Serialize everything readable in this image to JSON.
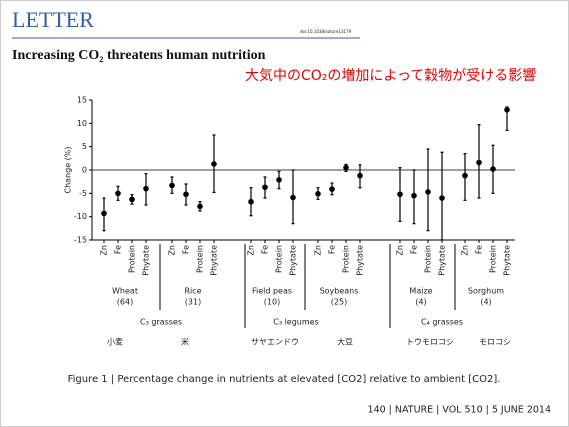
{
  "header": {
    "journal": "LETTER",
    "doi": "doi:10.1038/nature13179",
    "title": "Increasing CO₂ threatens human nutrition"
  },
  "annotation": "大気中のCO₂の増加によって穀物が受ける影響",
  "chart_data": {
    "type": "errorbar",
    "y_label": "Change (%)",
    "ylim": [
      -15,
      15
    ],
    "yticks": [
      -15,
      -10,
      -5,
      0,
      5,
      10,
      15
    ],
    "color": "#000000",
    "supergroups": [
      {
        "label": "C₃ grasses",
        "crops": [
          {
            "name": "Wheat",
            "n": "(64)",
            "local_name": "小麦",
            "categories": [
              "Zn",
              "Fe",
              "Protein",
              "Phytate"
            ],
            "values": [
              -9.3,
              -5,
              -6.3,
              -4
            ],
            "low": [
              -13,
              -6.5,
              -7.3,
              -7.5
            ],
            "high": [
              -6,
              -3.5,
              -5.3,
              -0.8
            ]
          },
          {
            "name": "Rice",
            "n": "(31)",
            "local_name": "米",
            "categories": [
              "Zn",
              "Fe",
              "Protein",
              "Phytate"
            ],
            "values": [
              -3.3,
              -5.2,
              -7.8,
              1.3
            ],
            "low": [
              -5,
              -7.5,
              -8.8,
              -4.8
            ],
            "high": [
              -1.5,
              -3,
              -6.8,
              7.5
            ]
          }
        ]
      },
      {
        "label": "C₃ legumes",
        "crops": [
          {
            "name": "Field peas",
            "n": "(10)",
            "local_name": "サヤエンドウ",
            "categories": [
              "Zn",
              "Fe",
              "Protein",
              "Phytate"
            ],
            "values": [
              -6.8,
              -3.7,
              -2.1,
              -5.9
            ],
            "low": [
              -9.8,
              -6,
              -4,
              -11.5
            ],
            "high": [
              -3.8,
              -1.5,
              -0.3,
              0
            ]
          },
          {
            "name": "Soybeans",
            "n": "(25)",
            "local_name": "大豆",
            "categories": [
              "Zn",
              "Fe",
              "Protein",
              "Phytate"
            ],
            "values": [
              -5.1,
              -4.1,
              0.5,
              -1.2
            ],
            "low": [
              -6.3,
              -5.3,
              -0.3,
              -3.8
            ],
            "high": [
              -3.8,
              -2.8,
              1.2,
              1.1
            ]
          }
        ]
      },
      {
        "label": "C₄ grasses",
        "crops": [
          {
            "name": "Maize",
            "n": "(4)",
            "local_name": "トウモロコシ",
            "categories": [
              "Zn",
              "Fe",
              "Protein",
              "Phytate"
            ],
            "values": [
              -5.2,
              -5.5,
              -4.7,
              -6
            ],
            "low": [
              -11,
              -11.5,
              -13,
              -15
            ],
            "high": [
              0.5,
              0,
              4.5,
              3.8
            ]
          },
          {
            "name": "Sorghum",
            "n": "(4)",
            "local_name": "モロコシ",
            "categories": [
              "Zn",
              "Fe",
              "Protein",
              "Phytate"
            ],
            "values": [
              -1.2,
              1.6,
              0.2,
              12.9
            ],
            "low": [
              -6.5,
              -6,
              -5,
              8.5
            ],
            "high": [
              3.5,
              9.7,
              5.3,
              13.5
            ]
          }
        ]
      }
    ]
  },
  "caption": "Figure 1 | Percentage change in nutrients at elevated [CO2] relative to ambient [CO2].",
  "footer": "140 | NATURE | VOL 510 | 5 JUNE 2014"
}
